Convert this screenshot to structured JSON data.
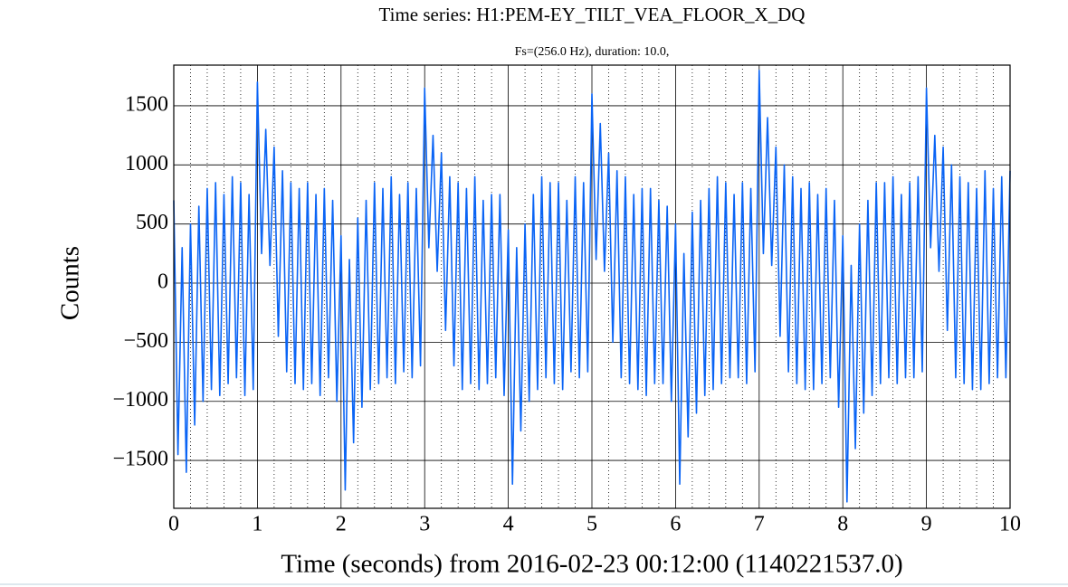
{
  "chart_data": {
    "type": "line",
    "title": "Time series:  H1:PEM-EY_TILT_VEA_FLOOR_X_DQ",
    "subtitle": "Fs=(256.0 Hz), duration: 10.0,",
    "xlabel": "Time (seconds) from 2016-02-23 00:12:00 (1140221537.0)",
    "ylabel": "Counts",
    "color": "#0a64f5",
    "grid": true,
    "xlim": [
      0,
      10
    ],
    "xticks": [
      0,
      1,
      2,
      3,
      4,
      5,
      6,
      7,
      8,
      9,
      10
    ],
    "xminor": [
      0.2,
      0.4,
      0.6,
      0.8,
      1.2,
      1.4,
      1.6,
      1.8,
      2.2,
      2.4,
      2.6,
      2.8,
      3.2,
      3.4,
      3.6,
      3.8,
      4.2,
      4.4,
      4.6,
      4.8,
      5.2,
      5.4,
      5.6,
      5.8,
      6.2,
      6.4,
      6.6,
      6.8,
      7.2,
      7.4,
      7.6,
      7.8,
      8.2,
      8.4,
      8.6,
      8.8,
      9.2,
      9.4,
      9.6,
      9.8
    ],
    "ylim": [
      -1905,
      1844
    ],
    "yticks": [
      {
        "value": -1500,
        "label": "−1500"
      },
      {
        "value": -1000,
        "label": "−1000"
      },
      {
        "value": -500,
        "label": "−500"
      },
      0,
      500,
      1000,
      1500
    ],
    "x": [
      0,
      0.05,
      0.1,
      0.15,
      0.2,
      0.25,
      0.3,
      0.35,
      0.4,
      0.45,
      0.5,
      0.55,
      0.6,
      0.65,
      0.7,
      0.75,
      0.8,
      0.85,
      0.9,
      0.95,
      1,
      1.05,
      1.1,
      1.15,
      1.2,
      1.25,
      1.3,
      1.35,
      1.4,
      1.45,
      1.5,
      1.55,
      1.6,
      1.65,
      1.7,
      1.75,
      1.8,
      1.85,
      1.9,
      1.95,
      2,
      2.05,
      2.1,
      2.15,
      2.2,
      2.25,
      2.3,
      2.35,
      2.4,
      2.45,
      2.5,
      2.55,
      2.6,
      2.65,
      2.7,
      2.75,
      2.8,
      2.85,
      2.9,
      2.95,
      3,
      3.05,
      3.1,
      3.15,
      3.2,
      3.25,
      3.3,
      3.35,
      3.4,
      3.45,
      3.5,
      3.55,
      3.6,
      3.65,
      3.7,
      3.75,
      3.8,
      3.85,
      3.9,
      3.95,
      4,
      4.05,
      4.1,
      4.15,
      4.2,
      4.25,
      4.3,
      4.35,
      4.4,
      4.45,
      4.5,
      4.55,
      4.6,
      4.65,
      4.7,
      4.75,
      4.8,
      4.85,
      4.9,
      4.95,
      5,
      5.05,
      5.1,
      5.15,
      5.2,
      5.25,
      5.3,
      5.35,
      5.4,
      5.45,
      5.5,
      5.55,
      5.6,
      5.65,
      5.7,
      5.75,
      5.8,
      5.85,
      5.9,
      5.95,
      6,
      6.05,
      6.1,
      6.15,
      6.2,
      6.25,
      6.3,
      6.35,
      6.4,
      6.45,
      6.5,
      6.55,
      6.6,
      6.65,
      6.7,
      6.75,
      6.8,
      6.85,
      6.9,
      6.95,
      7,
      7.05,
      7.1,
      7.15,
      7.2,
      7.25,
      7.3,
      7.35,
      7.4,
      7.45,
      7.5,
      7.55,
      7.6,
      7.65,
      7.7,
      7.75,
      7.8,
      7.85,
      7.9,
      7.95,
      8,
      8.05,
      8.1,
      8.15,
      8.2,
      8.25,
      8.3,
      8.35,
      8.4,
      8.45,
      8.5,
      8.55,
      8.6,
      8.65,
      8.7,
      8.75,
      8.8,
      8.85,
      8.9,
      8.95,
      9,
      9.05,
      9.1,
      9.15,
      9.2,
      9.25,
      9.3,
      9.35,
      9.4,
      9.45,
      9.5,
      9.55,
      9.6,
      9.65,
      9.7,
      9.75,
      9.8,
      9.85,
      9.9,
      9.95,
      10
    ],
    "values": [
      700,
      -1450,
      300,
      -1600,
      500,
      -1200,
      650,
      -1000,
      800,
      -900,
      850,
      -950,
      750,
      -850,
      900,
      -800,
      850,
      -950,
      750,
      -900,
      1700,
      250,
      1300,
      150,
      1150,
      -450,
      950,
      -750,
      850,
      -850,
      800,
      -900,
      850,
      -850,
      750,
      -950,
      800,
      -800,
      700,
      -1000,
      400,
      -1750,
      200,
      -1350,
      550,
      -1050,
      700,
      -900,
      850,
      -850,
      800,
      -800,
      900,
      -850,
      750,
      -750,
      850,
      -800,
      800,
      -700,
      1650,
      300,
      1250,
      100,
      1100,
      -400,
      900,
      -700,
      850,
      -900,
      800,
      -850,
      900,
      -900,
      700,
      -850,
      750,
      -800,
      750,
      -950,
      450,
      -1700,
      300,
      -1250,
      500,
      -1000,
      750,
      -900,
      900,
      -800,
      850,
      -850,
      850,
      -900,
      700,
      -750,
      900,
      -800,
      850,
      -750,
      1600,
      200,
      1350,
      100,
      1100,
      -500,
      950,
      -800,
      900,
      -850,
      750,
      -900,
      800,
      -950,
      800,
      -850,
      700,
      -850,
      650,
      -1000,
      500,
      -1700,
      250,
      -1300,
      600,
      -1100,
      700,
      -950,
      800,
      -900,
      900,
      -850,
      850,
      -800,
      750,
      -800,
      850,
      -850,
      800,
      -750,
      1800,
      250,
      1400,
      150,
      1150,
      -450,
      1000,
      -750,
      900,
      -850,
      800,
      -900,
      850,
      -900,
      750,
      -850,
      800,
      -800,
      700,
      -1050,
      400,
      -1850,
      150,
      -1400,
      500,
      -1100,
      700,
      -950,
      850,
      -850,
      850,
      -800,
      900,
      -850,
      750,
      -800,
      850,
      -800,
      900,
      -750,
      1650,
      300,
      1250,
      100,
      1150,
      -400,
      1000,
      -800,
      900,
      -850,
      850,
      -900,
      800,
      -900,
      950,
      -850,
      800,
      -800,
      900,
      -800,
      950
    ]
  }
}
